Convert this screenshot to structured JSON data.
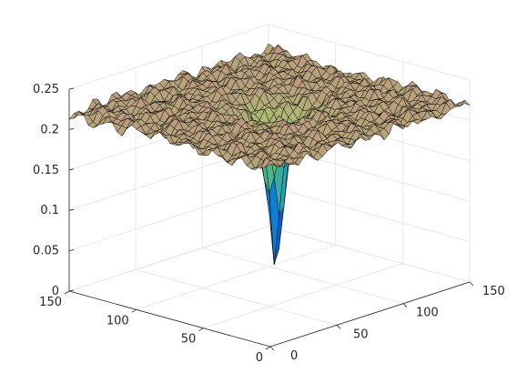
{
  "chart_data": {
    "type": "surface",
    "title": "",
    "xlabel": "",
    "ylabel": "",
    "zlabel": "",
    "grid": true,
    "view": "3d-isometric",
    "xlim": [
      0,
      150
    ],
    "ylim": [
      0,
      150
    ],
    "zlim": [
      0,
      0.25
    ],
    "x_ticks": [
      "0",
      "50",
      "100",
      "150"
    ],
    "y_ticks": [
      "0",
      "50",
      "100",
      "150"
    ],
    "z_ticks": [
      "0",
      "0.05",
      "0.1",
      "0.15",
      "0.2",
      "0.25"
    ],
    "surface": {
      "grid_size": 150,
      "plateau_level": 0.22,
      "plateau_variation": 0.012,
      "min_location": [
        80,
        75
      ],
      "min_value": 0.03,
      "colormap": "parula-like",
      "edge_color": "#000000"
    }
  }
}
